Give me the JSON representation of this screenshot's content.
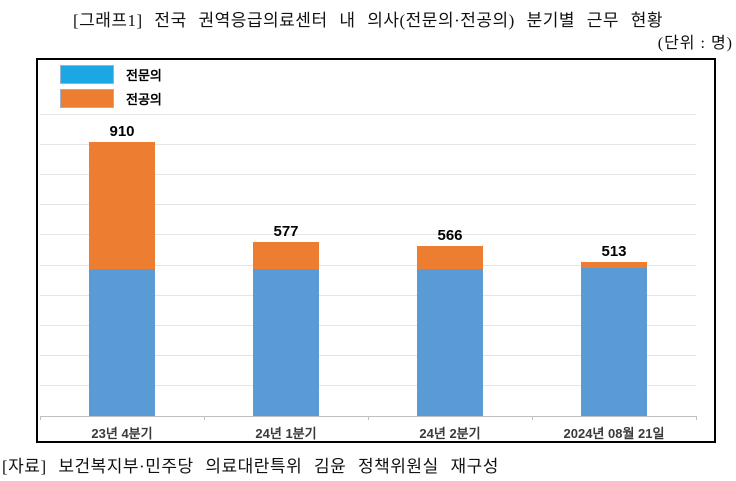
{
  "title": {
    "text": "[그래프1] 전국 권역응급의료센터 내 의사(전문의·전공의) 분기별 근무 현황",
    "unit": "(단위 : 명)"
  },
  "source": "[자료] 보건복지부·민주당 의료대란특위 김윤 정책위원실 재구성",
  "legend": {
    "position": "top-left",
    "items": [
      {
        "label": "전문의",
        "color": "#1BA7E4",
        "border": "#95B3D7"
      },
      {
        "label": "전공의",
        "color": "#ED7D31",
        "border": "#95B3D7"
      }
    ]
  },
  "chart_data": {
    "type": "bar",
    "subtype": "stacked",
    "title": "전국 권역응급의료센터 내 의사(전문의·전공의) 분기별 근무 현황",
    "unit": "명",
    "categories": [
      "23년 4분기",
      "24년 1분기",
      "24년 2분기",
      "2024년 08월 21일"
    ],
    "series": [
      {
        "name": "전문의",
        "color": "#5B9BD5",
        "values": [
          487,
          490,
          490,
          493
        ]
      },
      {
        "name": "전공의",
        "color": "#ED7D31",
        "values": [
          423,
          87,
          76,
          20
        ]
      }
    ],
    "totals": [
      910,
      577,
      566,
      513
    ],
    "total_labels_shown": true,
    "xlabel": "",
    "ylabel": "",
    "ylim": [
      0,
      1000
    ],
    "gridline_step": 100,
    "grid": true,
    "y_axis_labels_shown": false,
    "axis_color": "#BFBFBF",
    "gridline_color": "#E5E5E5"
  }
}
